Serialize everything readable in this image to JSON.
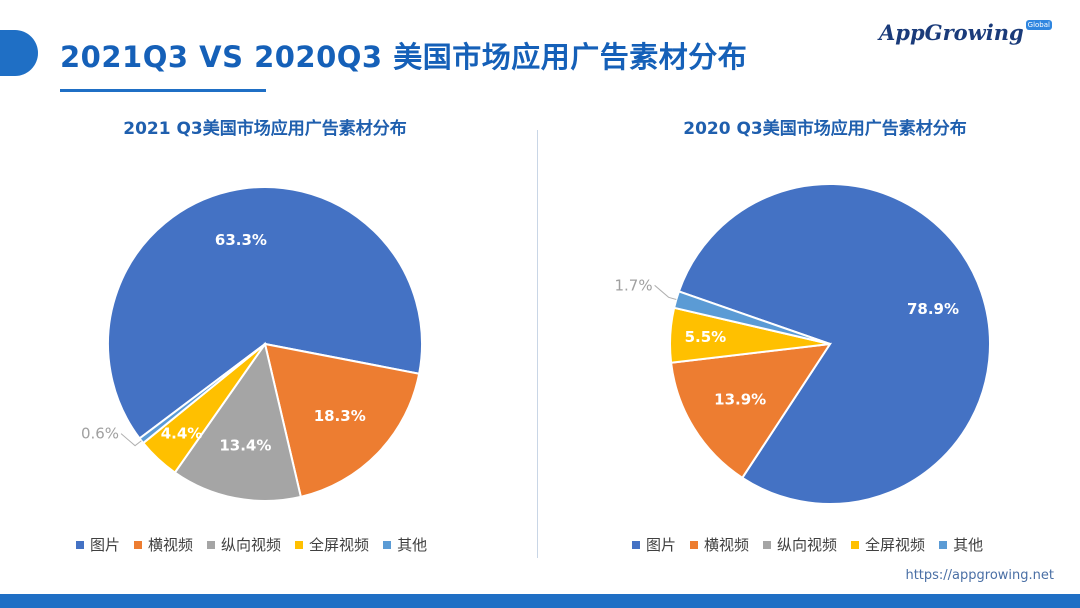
{
  "header": {
    "title": "2021Q3 VS 2020Q3 美国市场应用广告素材分布",
    "logo_text": "AppGrowing",
    "logo_badge": "Global"
  },
  "footer": {
    "url": "https://appgrowing.net"
  },
  "colors": {
    "brand": "#1f6fc5",
    "图片": "#4472c4",
    "横视频": "#ed7d31",
    "纵向视频": "#a5a5a5",
    "全屏视频": "#ffc000",
    "其他": "#5b9bd5"
  },
  "chart_data": [
    {
      "type": "pie",
      "title": "2021 Q3美国市场应用广告素材分布",
      "categories": [
        "图片",
        "横视频",
        "纵向视频",
        "全屏视频",
        "其他"
      ],
      "values": [
        63.3,
        18.3,
        13.4,
        4.4,
        0.6
      ],
      "labels": [
        "63.3%",
        "18.3%",
        "13.4%",
        "4.4%",
        "0.6%"
      ],
      "legend": "bottom"
    },
    {
      "type": "pie",
      "title": "2020 Q3美国市场应用广告素材分布",
      "categories": [
        "图片",
        "横视频",
        "纵向视频",
        "全屏视频",
        "其他"
      ],
      "values": [
        78.9,
        13.9,
        0,
        5.5,
        1.7
      ],
      "labels": [
        "78.9%",
        "13.9%",
        "",
        "5.5%",
        "1.7%"
      ],
      "legend": "bottom"
    }
  ]
}
